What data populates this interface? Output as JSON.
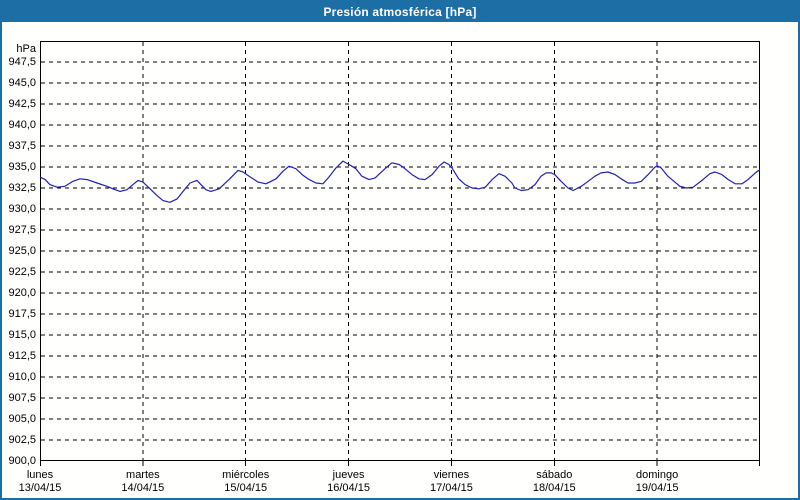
{
  "window": {
    "title": "Presión atmosférica [hPa]"
  },
  "colors": {
    "frame": "#1C6EA4",
    "titlebar_text": "#FFFFFF",
    "line": "#2020B4",
    "grid": "#000000",
    "background": "#FFFFFE",
    "label_text": "#000000"
  },
  "chart_data": {
    "type": "line",
    "title": "Presión atmosférica [hPa]",
    "unit_label": "hPa",
    "ylim": [
      900.0,
      950.0
    ],
    "y_tick_step": 2.5,
    "y_ticks": [
      {
        "value": 947.5,
        "label": "947,5"
      },
      {
        "value": 945.0,
        "label": "945,0"
      },
      {
        "value": 942.5,
        "label": "942,5"
      },
      {
        "value": 940.0,
        "label": "940,0"
      },
      {
        "value": 937.5,
        "label": "937,5"
      },
      {
        "value": 935.0,
        "label": "935,0"
      },
      {
        "value": 932.5,
        "label": "932,5"
      },
      {
        "value": 930.0,
        "label": "930,0"
      },
      {
        "value": 927.5,
        "label": "927,5"
      },
      {
        "value": 925.0,
        "label": "925,0"
      },
      {
        "value": 922.5,
        "label": "922,5"
      },
      {
        "value": 920.0,
        "label": "920,0"
      },
      {
        "value": 917.5,
        "label": "917,5"
      },
      {
        "value": 915.0,
        "label": "915,0"
      },
      {
        "value": 912.5,
        "label": "912,5"
      },
      {
        "value": 910.0,
        "label": "910,0"
      },
      {
        "value": 907.5,
        "label": "907,5"
      },
      {
        "value": 905.0,
        "label": "905,0"
      },
      {
        "value": 902.5,
        "label": "902,5"
      },
      {
        "value": 900.0,
        "label": "900,0"
      }
    ],
    "xlim_hours": [
      0,
      168
    ],
    "x_ticks": [
      {
        "hour": 0,
        "day": "lunes",
        "date": "13/04/15"
      },
      {
        "hour": 24,
        "day": "martes",
        "date": "14/04/15"
      },
      {
        "hour": 48,
        "day": "miércoles",
        "date": "15/04/15"
      },
      {
        "hour": 72,
        "day": "jueves",
        "date": "16/04/15"
      },
      {
        "hour": 96,
        "day": "viernes",
        "date": "17/04/15"
      },
      {
        "hour": 120,
        "day": "sábado",
        "date": "18/04/15"
      },
      {
        "hour": 144,
        "day": "domingo",
        "date": "19/04/15"
      }
    ],
    "x_axis_end_hour": 168,
    "grid": "dashed",
    "legend": "none",
    "series": [
      {
        "name": "Presión atmosférica",
        "color": "#2020B4",
        "points": [
          [
            0,
            933.8
          ],
          [
            1.2,
            933.5
          ],
          [
            2.3,
            932.9
          ],
          [
            4,
            932.6
          ],
          [
            5.8,
            932.7
          ],
          [
            7.7,
            933.3
          ],
          [
            9.3,
            933.6
          ],
          [
            11,
            933.5
          ],
          [
            13.3,
            933.1
          ],
          [
            15.6,
            932.7
          ],
          [
            17,
            932.4
          ],
          [
            18.7,
            932.1
          ],
          [
            20.3,
            932.3
          ],
          [
            21.7,
            932.9
          ],
          [
            22.9,
            933.4
          ],
          [
            24,
            933.2
          ],
          [
            25.7,
            932.4
          ],
          [
            27.3,
            931.6
          ],
          [
            28.7,
            931.0
          ],
          [
            30.3,
            930.8
          ],
          [
            32,
            931.2
          ],
          [
            33.4,
            932.1
          ],
          [
            35,
            933.1
          ],
          [
            36.6,
            933.4
          ],
          [
            38.7,
            932.3
          ],
          [
            39.9,
            932.1
          ],
          [
            41.8,
            932.4
          ],
          [
            44.1,
            933.5
          ],
          [
            46.2,
            934.6
          ],
          [
            47.4,
            934.4
          ],
          [
            48.8,
            933.9
          ],
          [
            50.9,
            933.2
          ],
          [
            52.7,
            933.0
          ],
          [
            55.1,
            933.6
          ],
          [
            56.7,
            934.5
          ],
          [
            58.1,
            935.1
          ],
          [
            59.7,
            934.8
          ],
          [
            61.4,
            934.0
          ],
          [
            62.8,
            933.5
          ],
          [
            64.4,
            933.1
          ],
          [
            66,
            933.0
          ],
          [
            67.4,
            933.8
          ],
          [
            69.1,
            934.9
          ],
          [
            70.7,
            935.7
          ],
          [
            72.1,
            935.3
          ],
          [
            73.7,
            934.8
          ],
          [
            75.1,
            933.9
          ],
          [
            76.8,
            933.5
          ],
          [
            78.2,
            933.7
          ],
          [
            80.5,
            934.8
          ],
          [
            82.1,
            935.5
          ],
          [
            83.8,
            935.3
          ],
          [
            84.9,
            934.9
          ],
          [
            86.8,
            934.1
          ],
          [
            88.4,
            933.6
          ],
          [
            89.8,
            933.5
          ],
          [
            91.5,
            934.1
          ],
          [
            93.1,
            935.1
          ],
          [
            94.3,
            935.6
          ],
          [
            95.4,
            935.3
          ],
          [
            96.1,
            934.9
          ],
          [
            97.7,
            933.6
          ],
          [
            99.2,
            932.9
          ],
          [
            100.8,
            932.5
          ],
          [
            102.4,
            932.4
          ],
          [
            103.9,
            932.6
          ],
          [
            105.5,
            933.5
          ],
          [
            107.1,
            934.2
          ],
          [
            108.5,
            933.9
          ],
          [
            110.1,
            933.1
          ],
          [
            110.8,
            932.5
          ],
          [
            112.3,
            932.2
          ],
          [
            113.9,
            932.3
          ],
          [
            115.5,
            932.9
          ],
          [
            116.9,
            933.9
          ],
          [
            118.1,
            934.3
          ],
          [
            119.3,
            934.3
          ],
          [
            120.1,
            934.1
          ],
          [
            121.6,
            933.3
          ],
          [
            123.2,
            932.5
          ],
          [
            124.4,
            932.2
          ],
          [
            126.3,
            932.7
          ],
          [
            127.9,
            933.3
          ],
          [
            129.5,
            933.9
          ],
          [
            130.9,
            934.3
          ],
          [
            132.5,
            934.4
          ],
          [
            134.2,
            934.1
          ],
          [
            135.6,
            933.6
          ],
          [
            137.2,
            933.1
          ],
          [
            138.8,
            933.1
          ],
          [
            140.3,
            933.3
          ],
          [
            141.9,
            934.1
          ],
          [
            143.5,
            935.0
          ],
          [
            144.2,
            935.1
          ],
          [
            144.9,
            934.9
          ],
          [
            146.5,
            933.9
          ],
          [
            149.3,
            932.7
          ],
          [
            150.9,
            932.5
          ],
          [
            152.4,
            932.6
          ],
          [
            154.7,
            933.5
          ],
          [
            156.3,
            934.2
          ],
          [
            157.5,
            934.4
          ],
          [
            159.1,
            934.1
          ],
          [
            160.6,
            933.5
          ],
          [
            162.2,
            933.0
          ],
          [
            163.8,
            933.0
          ],
          [
            165.2,
            933.5
          ],
          [
            166.9,
            934.3
          ],
          [
            168,
            934.7
          ]
        ]
      }
    ]
  }
}
